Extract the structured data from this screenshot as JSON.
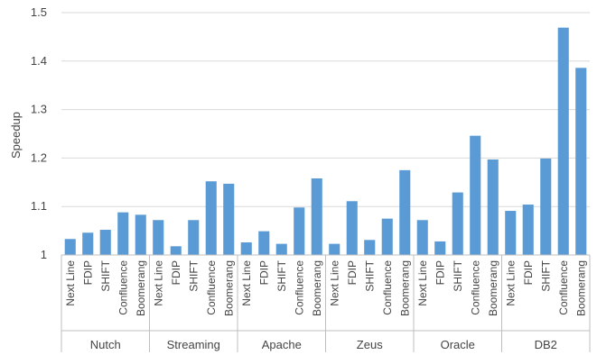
{
  "chart_data": {
    "type": "bar",
    "ylabel": "Speedup",
    "ylim": [
      1,
      1.5
    ],
    "yticks": [
      "1",
      "1.1",
      "1.2",
      "1.3",
      "1.4",
      "1.5"
    ],
    "grid": true,
    "bar_color": "#5b9bd5",
    "groups": [
      {
        "name": "Nutch",
        "categories": [
          "Next Line",
          "FDIP",
          "SHIFT",
          "Confluence",
          "Boomerang"
        ],
        "values": [
          1.033,
          1.046,
          1.052,
          1.088,
          1.083
        ]
      },
      {
        "name": "Streaming",
        "categories": [
          "Next Line",
          "FDIP",
          "SHIFT",
          "Confluence",
          "Boomerang"
        ],
        "values": [
          1.072,
          1.018,
          1.072,
          1.152,
          1.147
        ]
      },
      {
        "name": "Apache",
        "categories": [
          "Next Line",
          "FDIP",
          "SHIFT",
          "Confluence",
          "Boomerang"
        ],
        "values": [
          1.026,
          1.049,
          1.023,
          1.098,
          1.158
        ]
      },
      {
        "name": "Zeus",
        "categories": [
          "Next Line",
          "FDIP",
          "SHIFT",
          "Confluence",
          "Boomerang"
        ],
        "values": [
          1.023,
          1.111,
          1.031,
          1.075,
          1.175
        ]
      },
      {
        "name": "Oracle",
        "categories": [
          "Next Line",
          "FDIP",
          "SHIFT",
          "Confluence",
          "Boomerang"
        ],
        "values": [
          1.072,
          1.028,
          1.129,
          1.246,
          1.197
        ]
      },
      {
        "name": "DB2",
        "categories": [
          "Next Line",
          "FDIP",
          "SHIFT",
          "Confluence",
          "Boomerang"
        ],
        "values": [
          1.091,
          1.104,
          1.199,
          1.469,
          1.386
        ]
      }
    ]
  }
}
